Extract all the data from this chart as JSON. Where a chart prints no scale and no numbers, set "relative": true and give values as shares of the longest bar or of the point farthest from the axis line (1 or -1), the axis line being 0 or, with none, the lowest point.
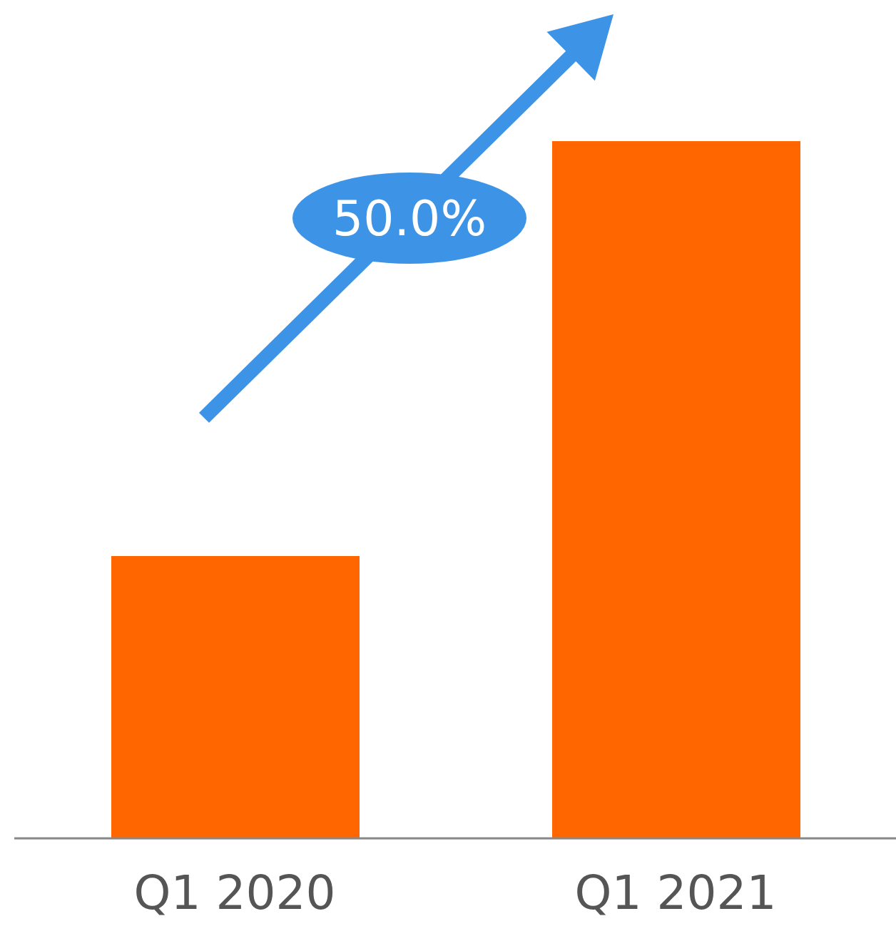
{
  "chart_data": {
    "type": "bar",
    "categories": [
      "Q1 2020",
      "Q1 2021"
    ],
    "values": [
      0.405,
      1
    ],
    "color": "#ff6600",
    "relative": true,
    "annotations": [
      "50.0%"
    ]
  }
}
